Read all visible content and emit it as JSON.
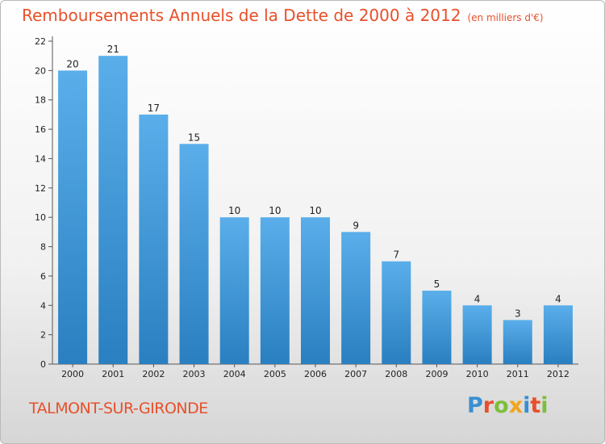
{
  "header": {
    "title": "Remboursements Annuels de la Dette de 2000 à 2012",
    "unit": "(en milliers d'€)"
  },
  "footer": {
    "commune": "TALMONT-SUR-GIRONDE",
    "brand_letters": [
      {
        "char": "P",
        "color": "#3a8fd1"
      },
      {
        "char": "r",
        "color": "#e8502a"
      },
      {
        "char": "o",
        "color": "#7cbf3a"
      },
      {
        "char": "x",
        "color": "#f0a51c"
      },
      {
        "char": "i",
        "color": "#3a8fd1"
      },
      {
        "char": "t",
        "color": "#e8502a"
      },
      {
        "char": "i",
        "color": "#7cbf3a"
      }
    ]
  },
  "chart_data": {
    "type": "bar",
    "categories": [
      "2000",
      "2001",
      "2002",
      "2003",
      "2004",
      "2005",
      "2006",
      "2007",
      "2008",
      "2009",
      "2010",
      "2011",
      "2012"
    ],
    "values": [
      20,
      21,
      17,
      15,
      10,
      10,
      10,
      9,
      7,
      5,
      4,
      3,
      4
    ],
    "title": "Remboursements Annuels de la Dette de 2000 à 2012",
    "xlabel": "",
    "ylabel": "",
    "ylim": [
      0,
      22
    ],
    "yticks": [
      0,
      2,
      4,
      6,
      8,
      10,
      12,
      14,
      16,
      18,
      20,
      22
    ],
    "grid": false,
    "data_labels": true,
    "colors": {
      "bar_light": "#5aaeea",
      "bar_dark": "#2a7fc0",
      "axis": "#555555"
    }
  }
}
